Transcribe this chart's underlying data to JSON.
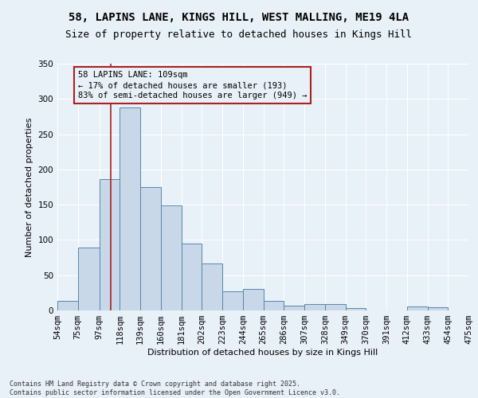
{
  "title_line1": "58, LAPINS LANE, KINGS HILL, WEST MALLING, ME19 4LA",
  "title_line2": "Size of property relative to detached houses in Kings Hill",
  "xlabel": "Distribution of detached houses by size in Kings Hill",
  "ylabel": "Number of detached properties",
  "footer": "Contains HM Land Registry data © Crown copyright and database right 2025.\nContains public sector information licensed under the Open Government Licence v3.0.",
  "annotation_title": "58 LAPINS LANE: 109sqm",
  "annotation_line1": "← 17% of detached houses are smaller (193)",
  "annotation_line2": "83% of semi-detached houses are larger (949) →",
  "vline_x": 109,
  "bar_categories": [
    "54sqm",
    "75sqm",
    "97sqm",
    "118sqm",
    "139sqm",
    "160sqm",
    "181sqm",
    "202sqm",
    "223sqm",
    "244sqm",
    "265sqm",
    "286sqm",
    "307sqm",
    "328sqm",
    "349sqm",
    "370sqm",
    "391sqm",
    "412sqm",
    "433sqm",
    "454sqm",
    "475sqm"
  ],
  "bar_left_edges": [
    54,
    75,
    97,
    118,
    139,
    160,
    181,
    202,
    223,
    244,
    265,
    286,
    307,
    328,
    349,
    370,
    391,
    412,
    433,
    454
  ],
  "bar_widths": [
    21,
    22,
    21,
    21,
    21,
    21,
    21,
    21,
    21,
    21,
    21,
    21,
    21,
    21,
    21,
    21,
    21,
    21,
    21,
    21
  ],
  "bar_heights": [
    13,
    89,
    186,
    288,
    175,
    149,
    95,
    67,
    27,
    30,
    14,
    7,
    9,
    9,
    3,
    0,
    0,
    6,
    5,
    0
  ],
  "bar_color": "#c8d8e8",
  "bar_edgecolor": "#5588aa",
  "vline_color": "#aa2222",
  "background_color": "#e8f0f8",
  "ylim": [
    0,
    350
  ],
  "yticks": [
    0,
    50,
    100,
    150,
    200,
    250,
    300,
    350
  ],
  "grid_color": "#ffffff",
  "title_fontsize": 10,
  "subtitle_fontsize": 9,
  "axis_label_fontsize": 8,
  "tick_fontsize": 7.5,
  "annotation_fontsize": 7.5,
  "footer_fontsize": 6
}
